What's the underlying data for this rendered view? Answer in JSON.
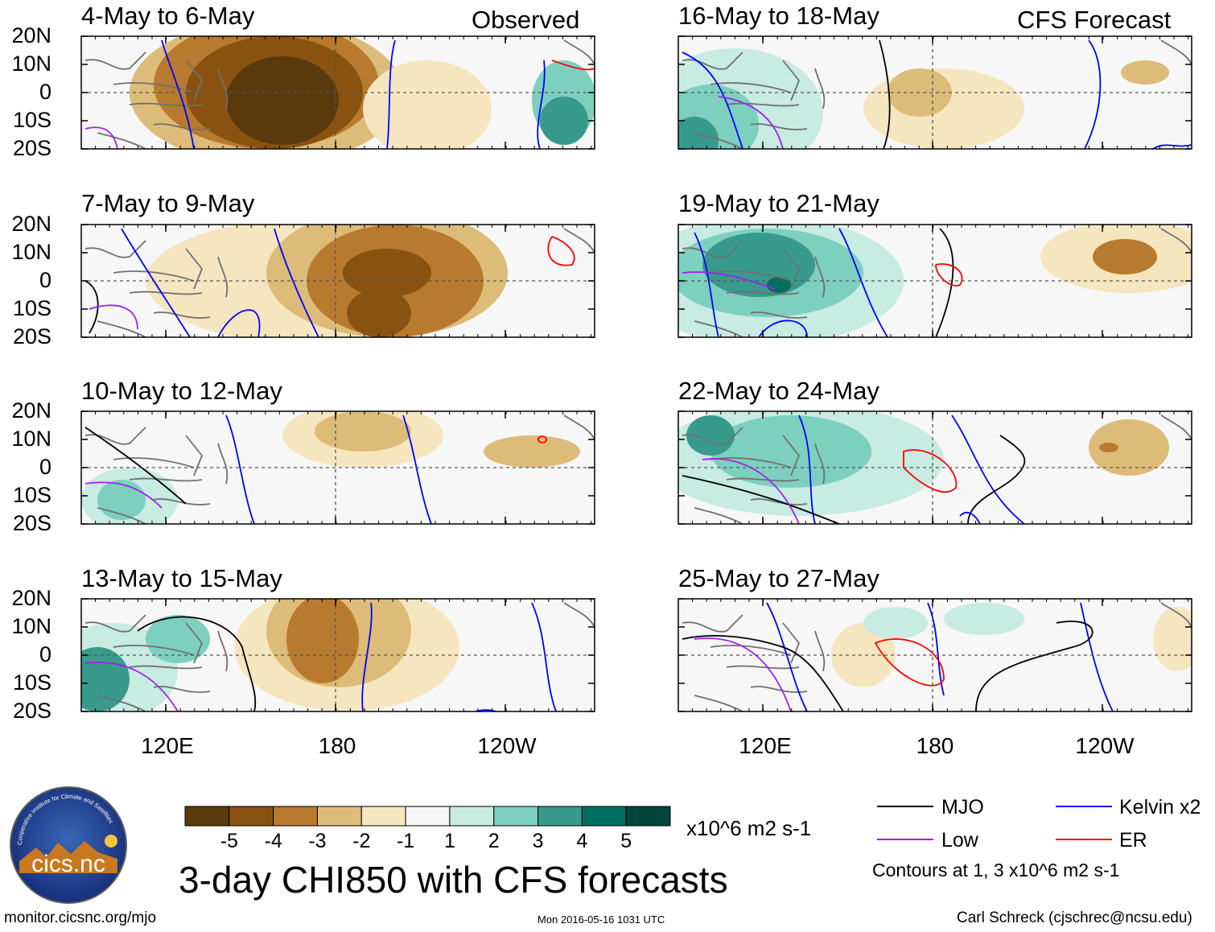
{
  "figure": {
    "main_title": "3-day CHI850 with CFS forecasts",
    "units": "x10^6 m2 s-1",
    "footer_left": "monitor.cicsnc.org/mjo",
    "footer_center": "Mon 2016-05-16 1031 UTC",
    "footer_right": "Carl Schreck (cjschrec@ncsu.edu)",
    "logo_text": "cics.nc",
    "logo_ring_text": "Cooperative Institute for Climate and Satellites",
    "contours_note": "Contours at 1, 3 x10^6 m2 s-1"
  },
  "columns": {
    "left_label": "Observed",
    "right_label": "CFS Forecast"
  },
  "axes": {
    "y_ticks": [
      "20N",
      "10N",
      "0",
      "10S",
      "20S"
    ],
    "x_ticks": [
      "120E",
      "180",
      "120W"
    ]
  },
  "colorbar": {
    "colors": [
      "#5a3a0c",
      "#8a5210",
      "#b87a2e",
      "#dcbc78",
      "#f6e6c0",
      "#f7f7f7",
      "#c8ebe2",
      "#7dcfbe",
      "#389a8c",
      "#006e60",
      "#00463c"
    ],
    "ticks": [
      "-5",
      "-4",
      "-3",
      "-2",
      "-1",
      "1",
      "2",
      "3",
      "4",
      "5"
    ]
  },
  "legend": [
    {
      "label": "MJO",
      "color": "#000000"
    },
    {
      "label": "Kelvin x2",
      "color": "#0000ff"
    },
    {
      "label": "Low",
      "color": "#a020f0"
    },
    {
      "label": "ER",
      "color": "#ff0000"
    }
  ],
  "chart_data": [
    {
      "type": "heatmap",
      "title": "4-May to 6-May",
      "source": "Observed",
      "dominant_anomaly": "-5 (suppressed, west-central Pacific)"
    },
    {
      "type": "heatmap",
      "title": "7-May to 9-May",
      "source": "Observed",
      "dominant_anomaly": "-4 (suppressed, central Pacific)"
    },
    {
      "type": "heatmap",
      "title": "10-May to 12-May",
      "source": "Observed",
      "dominant_anomaly": "-2 (weak suppressed)"
    },
    {
      "type": "heatmap",
      "title": "13-May to 15-May",
      "source": "Observed",
      "dominant_anomaly": "-4 (suppressed near 180)"
    },
    {
      "type": "heatmap",
      "title": "16-May to 18-May",
      "source": "CFS Forecast",
      "dominant_anomaly": "3 (enhanced, Maritime Continent)"
    },
    {
      "type": "heatmap",
      "title": "19-May to 21-May",
      "source": "CFS Forecast",
      "dominant_anomaly": "4 (enhanced, Maritime Continent)"
    },
    {
      "type": "heatmap",
      "title": "22-May to 24-May",
      "source": "CFS Forecast",
      "dominant_anomaly": "3 (enhanced, west Pacific)"
    },
    {
      "type": "heatmap",
      "title": "25-May to 27-May",
      "source": "CFS Forecast",
      "dominant_anomaly": "1 (weak)"
    }
  ]
}
